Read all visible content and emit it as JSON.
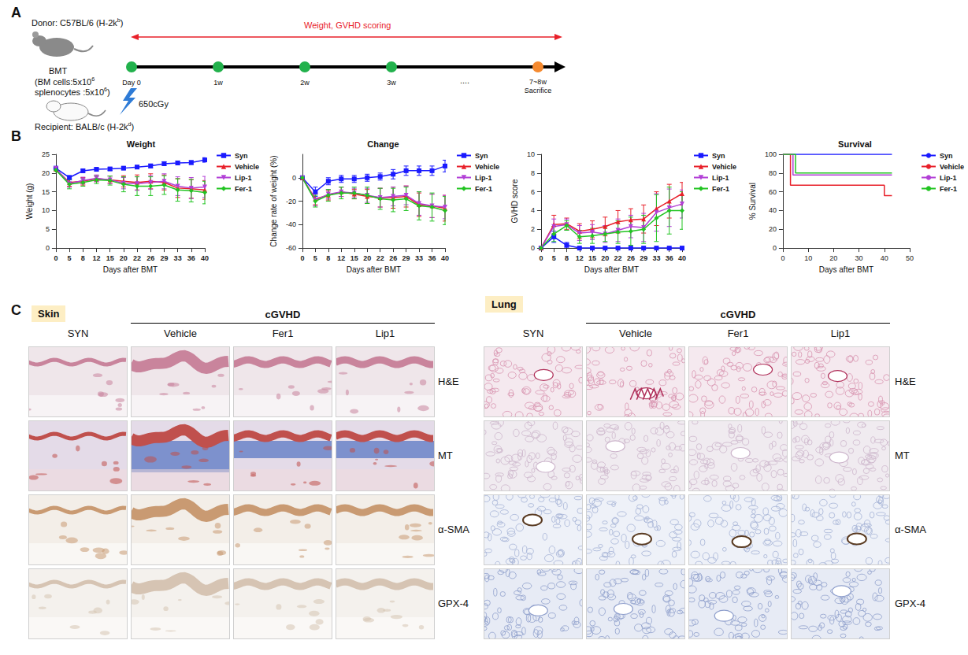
{
  "panel_a": {
    "label": "A",
    "scoring": "Weight, GVHD scoring",
    "donor": {
      "text": "Donor: C57BL/6 (H-2k",
      "sup": "b",
      "after": ")"
    },
    "bmt": "BMT",
    "cells": [
      {
        "text": "(BM cells:5x10",
        "sup": "6",
        "after": ""
      },
      {
        "text": "splenocytes :5x10",
        "sup": "6",
        "after": ")"
      }
    ],
    "dose": "650cGy",
    "recipient": {
      "text": "Recipient: BALB/c (H-2k",
      "sup": "d",
      "after": ")"
    },
    "timeline": {
      "points": [
        "Day 0",
        "1w",
        "2w",
        "3w"
      ],
      "gap": "....",
      "end": "7~8w",
      "end_note": "Sacrifice"
    }
  },
  "panel_b": {
    "label": "B"
  },
  "chart_data": [
    {
      "type": "line",
      "title": "Weight",
      "x_label": "Days after BMT",
      "y_label": "Weight (g)",
      "categories": [
        0,
        5,
        8,
        12,
        15,
        20,
        22,
        26,
        29,
        33,
        36,
        40
      ],
      "ylim": [
        0,
        25
      ],
      "yticks": [
        0,
        5,
        10,
        15,
        20,
        25
      ],
      "grid": false,
      "legend": "right",
      "series": [
        {
          "name": "Syn",
          "color": "#1a1aff",
          "marker": "square",
          "values": [
            21.3,
            18.8,
            20.6,
            21.0,
            21.1,
            21.3,
            21.6,
            21.9,
            22.5,
            22.7,
            22.8,
            23.5
          ],
          "errors": [
            0.3,
            0.5,
            0.4,
            0.4,
            0.4,
            0.4,
            0.4,
            0.5,
            0.5,
            0.5,
            0.5,
            0.6
          ]
        },
        {
          "name": "Vehicle",
          "color": "#e8202a",
          "marker": "triangle",
          "values": [
            21.0,
            17.5,
            17.8,
            18.5,
            18.2,
            17.8,
            17.5,
            17.8,
            17.5,
            16.0,
            15.8,
            15.5
          ],
          "errors": [
            0.4,
            1.0,
            1.0,
            0.8,
            1.0,
            1.5,
            2.0,
            2.0,
            2.0,
            2.5,
            2.5,
            2.5
          ]
        },
        {
          "name": "Lip-1",
          "color": "#b23fd6",
          "marker": "triangle-down",
          "values": [
            21.2,
            17.2,
            18.0,
            18.6,
            18.2,
            17.3,
            17.2,
            17.5,
            17.8,
            16.5,
            16.0,
            16.3
          ],
          "errors": [
            0.4,
            1.0,
            0.9,
            0.9,
            1.0,
            1.5,
            1.8,
            1.8,
            2.0,
            2.5,
            2.8,
            2.8
          ]
        },
        {
          "name": "Fer-1",
          "color": "#22c422",
          "marker": "diamond",
          "values": [
            20.8,
            17.0,
            17.5,
            18.2,
            18.0,
            17.0,
            16.5,
            16.5,
            16.8,
            15.5,
            15.3,
            14.8
          ],
          "errors": [
            0.5,
            1.2,
            1.0,
            1.0,
            1.2,
            2.0,
            2.5,
            2.5,
            2.5,
            3.0,
            3.0,
            3.0
          ]
        }
      ]
    },
    {
      "type": "line",
      "title": "Change",
      "x_label": "Days after BMT",
      "y_label": "Change rate of weight (%)",
      "categories": [
        0,
        5,
        8,
        12,
        15,
        20,
        22,
        26,
        29,
        33,
        36,
        40
      ],
      "ylim": [
        -60,
        20
      ],
      "yticks": [
        -60,
        -40,
        -20,
        0
      ],
      "grid": false,
      "legend": "right",
      "series": [
        {
          "name": "Syn",
          "color": "#1a1aff",
          "marker": "square",
          "values": [
            0,
            -12,
            -3,
            -1,
            -1,
            0,
            1,
            3,
            6,
            6,
            6,
            10
          ],
          "errors": [
            0,
            4,
            3,
            3,
            3,
            3,
            3,
            4,
            4,
            4,
            4,
            5
          ]
        },
        {
          "name": "Vehicle",
          "color": "#e8202a",
          "marker": "triangle",
          "values": [
            0,
            -18,
            -15,
            -12,
            -14,
            -16,
            -17,
            -17,
            -16,
            -23,
            -24,
            -26
          ],
          "errors": [
            0,
            5,
            4,
            4,
            4,
            6,
            8,
            9,
            9,
            10,
            10,
            11
          ]
        },
        {
          "name": "Lip-1",
          "color": "#b23fd6",
          "marker": "triangle-down",
          "values": [
            0,
            -19,
            -14,
            -12,
            -13,
            -15,
            -17,
            -16,
            -15,
            -22,
            -24,
            -25
          ],
          "errors": [
            0,
            5,
            4,
            4,
            4,
            6,
            8,
            8,
            8,
            10,
            10,
            10
          ]
        },
        {
          "name": "Fer-1",
          "color": "#22c422",
          "marker": "diamond",
          "values": [
            0,
            -20,
            -15,
            -13,
            -13,
            -15,
            -18,
            -19,
            -18,
            -24,
            -25,
            -28
          ],
          "errors": [
            0,
            5,
            5,
            5,
            5,
            7,
            9,
            10,
            10,
            12,
            12,
            12
          ]
        }
      ]
    },
    {
      "type": "line",
      "x_label": "Days after BMT",
      "y_label": "GVHD score",
      "categories": [
        0,
        5,
        8,
        12,
        15,
        20,
        22,
        26,
        29,
        33,
        36,
        40
      ],
      "ylim": [
        0,
        10
      ],
      "yticks": [
        0,
        2,
        4,
        6,
        8,
        10
      ],
      "grid": false,
      "legend": "right",
      "series": [
        {
          "name": "Syn",
          "color": "#1a1aff",
          "marker": "square",
          "values": [
            0,
            1.2,
            0.3,
            0,
            0,
            0,
            0,
            0,
            0,
            0,
            0,
            0
          ],
          "errors": [
            0,
            0.6,
            0.3,
            0,
            0,
            0,
            0,
            0,
            0,
            0,
            0,
            0
          ]
        },
        {
          "name": "Vehicle",
          "color": "#e8202a",
          "marker": "triangle",
          "values": [
            0,
            2.5,
            2.6,
            1.8,
            2.0,
            2.3,
            2.8,
            3.0,
            3.1,
            4.2,
            5.0,
            5.8
          ],
          "errors": [
            0,
            1.0,
            0.6,
            0.8,
            0.9,
            1.0,
            1.2,
            1.2,
            1.5,
            1.8,
            1.8,
            1.2
          ]
        },
        {
          "name": "Lip-1",
          "color": "#b23fd6",
          "marker": "triangle-down",
          "values": [
            0,
            2.3,
            2.5,
            1.6,
            1.7,
            1.5,
            1.9,
            2.3,
            2.2,
            3.8,
            4.3,
            4.7
          ],
          "errors": [
            0,
            0.8,
            0.6,
            0.8,
            0.8,
            0.9,
            1.2,
            1.2,
            1.5,
            2.0,
            2.0,
            1.5
          ]
        },
        {
          "name": "Fer-1",
          "color": "#22c422",
          "marker": "diamond",
          "values": [
            0,
            1.5,
            2.4,
            1.2,
            1.3,
            1.5,
            1.7,
            1.8,
            2.0,
            3.2,
            4.0,
            4.0
          ],
          "errors": [
            0,
            0.8,
            0.5,
            0.7,
            0.8,
            0.8,
            1.2,
            1.5,
            1.5,
            2.5,
            2.5,
            2.0
          ]
        }
      ]
    },
    {
      "type": "step",
      "title": "Survival",
      "x_label": "Days after BMT",
      "y_label": "% Survival",
      "xlim": [
        0,
        50
      ],
      "xticks": [
        0,
        10,
        20,
        30,
        40,
        50
      ],
      "ylim": [
        0,
        100
      ],
      "yticks": [
        0,
        20,
        40,
        60,
        80,
        100
      ],
      "grid": false,
      "legend": "right",
      "series": [
        {
          "name": "Syn",
          "color": "#1a1aff",
          "x": [
            0,
            43
          ],
          "values": [
            100,
            100
          ]
        },
        {
          "name": "Vehicle",
          "color": "#e8202a",
          "x": [
            0,
            3,
            40,
            43
          ],
          "values": [
            100,
            67,
            56,
            56
          ]
        },
        {
          "name": "Lip-1",
          "color": "#b23fd6",
          "x": [
            0,
            4,
            43
          ],
          "values": [
            100,
            78,
            78
          ]
        },
        {
          "name": "Fer-1",
          "color": "#22c422",
          "x": [
            0,
            5,
            43
          ],
          "values": [
            100,
            80,
            80
          ]
        }
      ]
    }
  ],
  "panel_c": {
    "label": "C",
    "tissues": [
      {
        "name": "Skin",
        "control": "SYN",
        "condition": "cGVHD",
        "treatments": [
          "Vehicle",
          "Fer1",
          "Lip1"
        ],
        "stains": [
          "H&E",
          "MT",
          "α-SMA",
          "GPX-4"
        ]
      },
      {
        "name": "Lung",
        "control": "SYN",
        "condition": "cGVHD",
        "treatments": [
          "Vehicle",
          "Fer1",
          "Lip1"
        ],
        "stains": [
          "H&E",
          "MT",
          "α-SMA",
          "GPX-4"
        ]
      }
    ]
  }
}
